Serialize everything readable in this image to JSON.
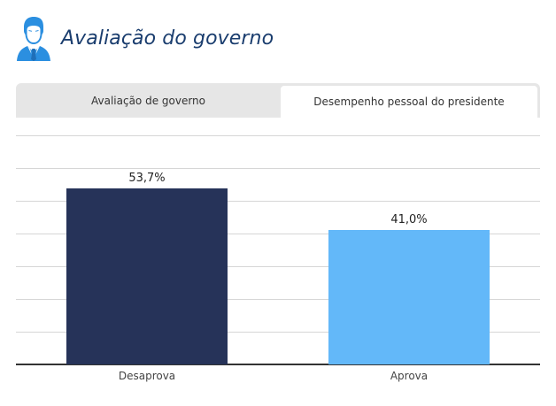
{
  "header": {
    "title": "Avaliação do governo",
    "icon": "person-suit-icon",
    "title_color": "#1a3d6e",
    "icon_color": "#2b8fe0"
  },
  "tabs": [
    {
      "label": "Avaliação de governo",
      "active": false
    },
    {
      "label": "Desempenho pessoal do presidente",
      "active": true
    }
  ],
  "chart_data": {
    "type": "bar",
    "title": "",
    "xlabel": "",
    "ylabel": "",
    "categories": [
      "Desaprova",
      "Aprova"
    ],
    "values": [
      53.7,
      41.0
    ],
    "value_labels": [
      "53,7%",
      "41,0%"
    ],
    "colors": [
      "#263359",
      "#63b8f9"
    ],
    "ylim": [
      0,
      70
    ],
    "gridlines": [
      0,
      10,
      20,
      30,
      40,
      50,
      60,
      70
    ],
    "grid": true,
    "legend": "none"
  }
}
